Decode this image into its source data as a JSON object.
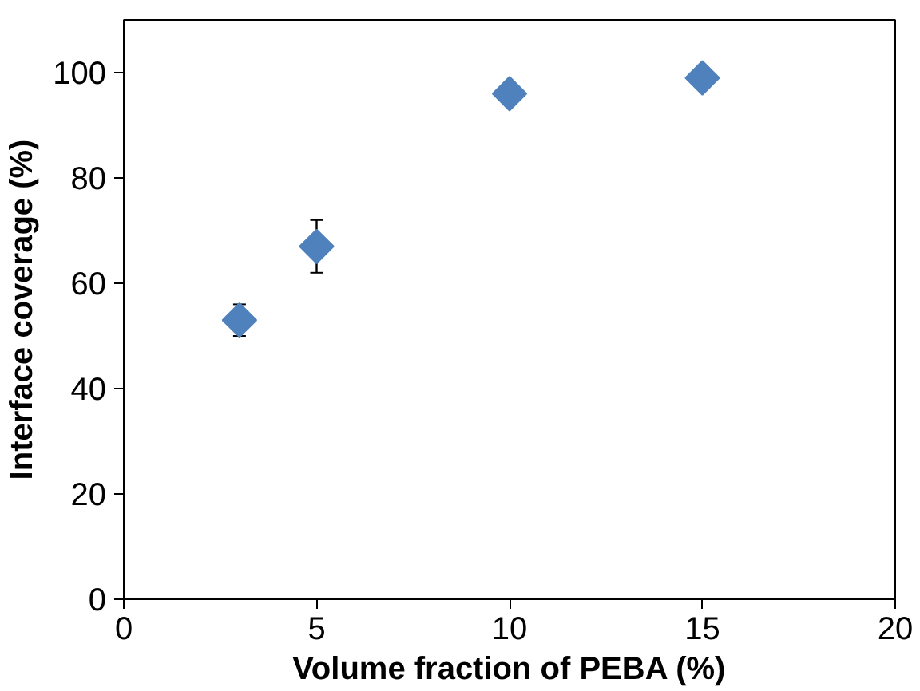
{
  "chart_data": {
    "type": "scatter",
    "xlabel": "Volume fraction of PEBA (%)",
    "ylabel": "Interface coverage (%)",
    "x": [
      3,
      5,
      10,
      15
    ],
    "series": [
      {
        "color": "#4f81bd",
        "values": [
          53,
          67,
          96,
          99
        ],
        "errors": [
          3,
          5,
          null,
          null
        ]
      }
    ],
    "xlim": [
      0,
      20
    ],
    "xticks": [
      0,
      5,
      10,
      15,
      20
    ],
    "ylim": [
      0,
      110
    ],
    "yticks": [
      0,
      20,
      40,
      60,
      80,
      100
    ],
    "grid": false,
    "marker": "diamond"
  }
}
